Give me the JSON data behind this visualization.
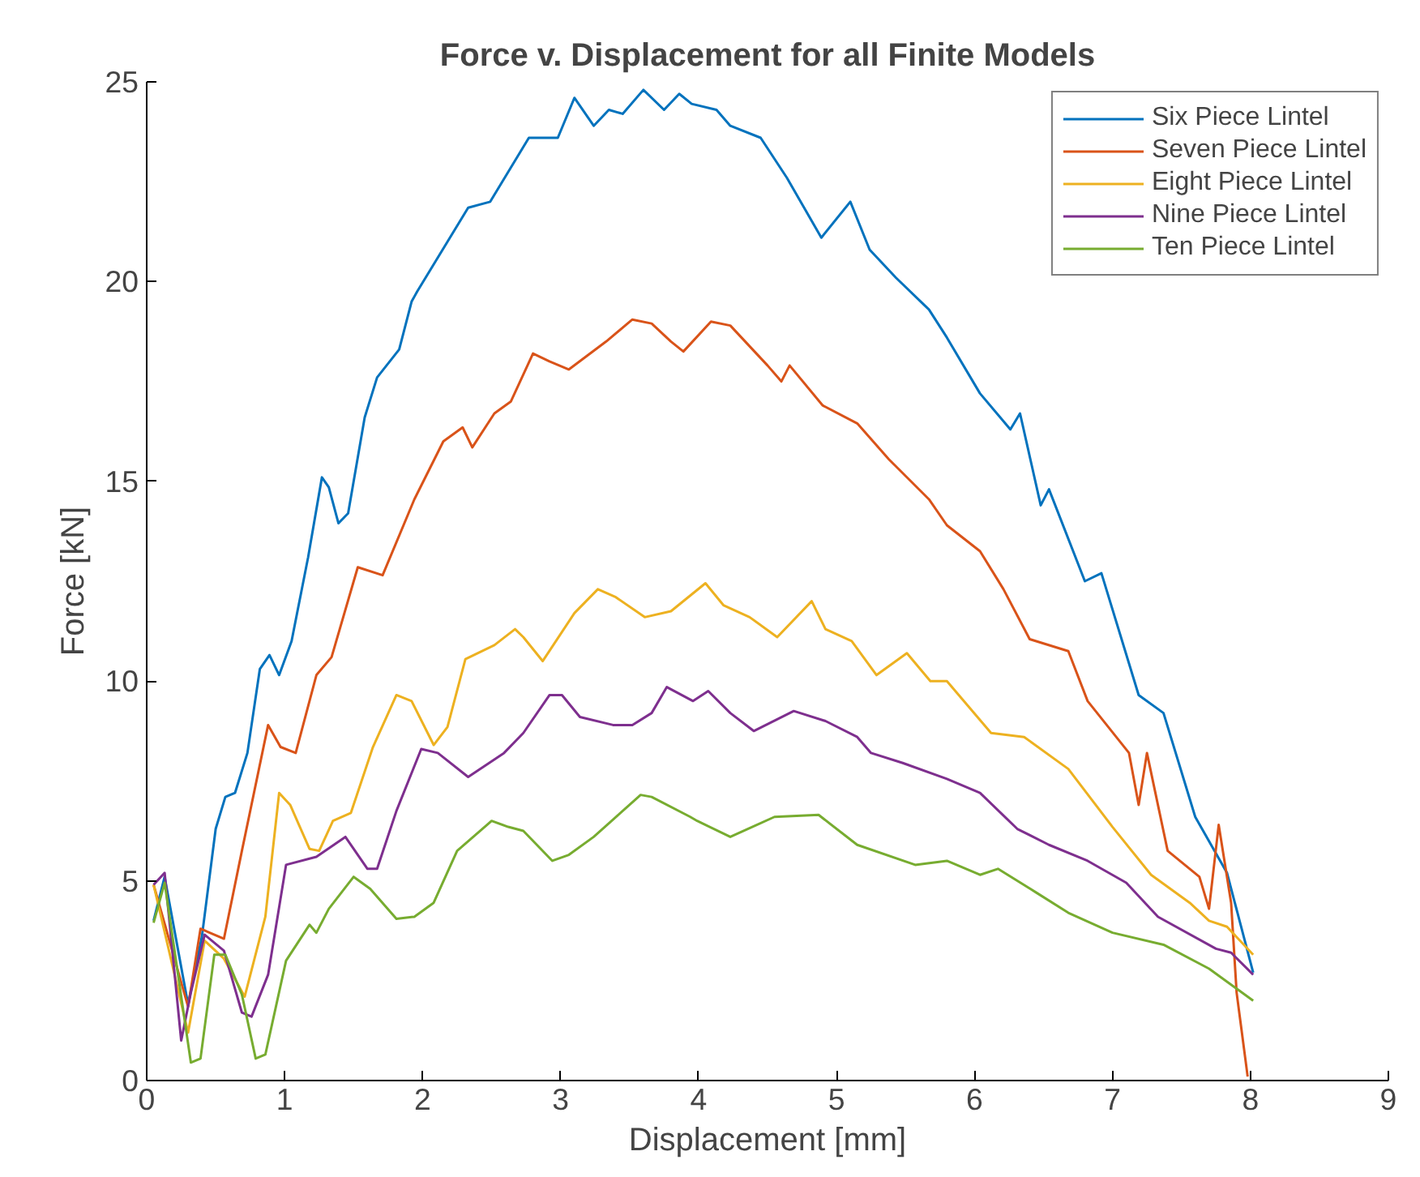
{
  "chart_data": {
    "type": "line",
    "title": "Force v. Displacement for all Finite Models",
    "xlabel": "Displacement [mm]",
    "ylabel": "Force [kN]",
    "xlim": [
      0,
      9
    ],
    "ylim": [
      0,
      25
    ],
    "xticks": [
      0,
      1,
      2,
      3,
      4,
      5,
      6,
      7,
      8,
      9
    ],
    "yticks": [
      0,
      5,
      10,
      15,
      20,
      25
    ],
    "grid": false,
    "legend": "top right",
    "marker": "none",
    "line_style": "solid",
    "series": [
      {
        "name": "Six Piece Lintel",
        "color": "#0072bd",
        "x": [
          0.05,
          0.13,
          0.3,
          0.4,
          0.5,
          0.57,
          0.64,
          0.73,
          0.82,
          0.89,
          0.96,
          1.05,
          1.17,
          1.27,
          1.32,
          1.39,
          1.46,
          1.58,
          1.67,
          1.83,
          1.92,
          1.96,
          2.33,
          2.49,
          2.77,
          2.98,
          3.1,
          3.24,
          3.35,
          3.45,
          3.6,
          3.75,
          3.86,
          3.95,
          4.13,
          4.23,
          4.45,
          4.64,
          4.89,
          5.1,
          5.24,
          5.43,
          5.67,
          5.8,
          6.04,
          6.26,
          6.33,
          6.48,
          6.54,
          6.8,
          6.92,
          7.19,
          7.37,
          7.6,
          7.83,
          8.02
        ],
        "values": [
          4.0,
          5.1,
          1.9,
          3.6,
          6.3,
          7.1,
          7.2,
          8.2,
          10.3,
          10.65,
          10.15,
          11.0,
          13.1,
          15.1,
          14.85,
          13.95,
          14.2,
          16.6,
          17.6,
          18.3,
          19.5,
          19.75,
          21.85,
          22.0,
          23.6,
          23.6,
          24.6,
          23.9,
          24.3,
          24.2,
          24.8,
          24.3,
          24.7,
          24.45,
          24.3,
          23.9,
          23.6,
          22.6,
          21.1,
          22.0,
          20.8,
          20.1,
          19.3,
          18.6,
          17.2,
          16.3,
          16.7,
          14.4,
          14.8,
          12.5,
          12.7,
          9.65,
          9.2,
          6.6,
          5.2,
          2.7
        ]
      },
      {
        "name": "Seven Piece Lintel",
        "color": "#d95319",
        "x": [
          0.05,
          0.3,
          0.39,
          0.56,
          0.69,
          0.88,
          0.97,
          1.08,
          1.23,
          1.34,
          1.53,
          1.71,
          1.94,
          2.15,
          2.29,
          2.36,
          2.52,
          2.64,
          2.8,
          2.92,
          3.06,
          3.33,
          3.52,
          3.66,
          3.8,
          3.89,
          4.09,
          4.23,
          4.5,
          4.6,
          4.66,
          4.9,
          5.15,
          5.38,
          5.67,
          5.8,
          6.04,
          6.21,
          6.4,
          6.68,
          6.82,
          7.12,
          7.19,
          7.25,
          7.4,
          7.63,
          7.7,
          7.77,
          7.86,
          7.9,
          7.98
        ],
        "values": [
          4.9,
          1.85,
          3.8,
          3.55,
          5.75,
          8.9,
          8.35,
          8.2,
          10.15,
          10.6,
          12.85,
          12.65,
          14.55,
          16.0,
          16.35,
          15.85,
          16.7,
          17.0,
          18.2,
          18.0,
          17.8,
          18.5,
          19.05,
          18.95,
          18.5,
          18.25,
          19.0,
          18.9,
          17.9,
          17.5,
          17.9,
          16.9,
          16.45,
          15.55,
          14.55,
          13.9,
          13.25,
          12.3,
          11.05,
          10.75,
          9.5,
          8.2,
          6.9,
          8.2,
          5.75,
          5.1,
          4.3,
          6.4,
          4.45,
          2.2,
          0.1
        ]
      },
      {
        "name": "Eight Piece Lintel",
        "color": "#edb120",
        "x": [
          0.05,
          0.3,
          0.42,
          0.56,
          0.71,
          0.86,
          0.96,
          1.04,
          1.18,
          1.25,
          1.35,
          1.48,
          1.64,
          1.81,
          1.92,
          2.08,
          2.18,
          2.31,
          2.52,
          2.67,
          2.73,
          2.87,
          3.1,
          3.27,
          3.4,
          3.61,
          3.8,
          4.05,
          4.18,
          4.37,
          4.57,
          4.82,
          4.92,
          5.11,
          5.29,
          5.51,
          5.68,
          5.8,
          6.12,
          6.36,
          6.68,
          7.0,
          7.28,
          7.56,
          7.7,
          7.83,
          8.02
        ],
        "values": [
          4.9,
          1.2,
          3.5,
          3.05,
          2.1,
          4.1,
          7.2,
          6.9,
          5.8,
          5.75,
          6.5,
          6.7,
          8.35,
          9.65,
          9.5,
          8.4,
          8.85,
          10.55,
          10.9,
          11.3,
          11.1,
          10.5,
          11.7,
          12.3,
          12.1,
          11.6,
          11.75,
          12.45,
          11.9,
          11.6,
          11.1,
          12.0,
          11.3,
          11.0,
          10.15,
          10.7,
          10.0,
          10.0,
          8.7,
          8.6,
          7.8,
          6.35,
          5.15,
          4.45,
          4.0,
          3.85,
          3.15
        ]
      },
      {
        "name": "Nine Piece Lintel",
        "color": "#7e2f8e",
        "x": [
          0.05,
          0.13,
          0.25,
          0.32,
          0.42,
          0.56,
          0.69,
          0.76,
          0.88,
          1.01,
          1.23,
          1.44,
          1.6,
          1.67,
          1.81,
          1.99,
          2.11,
          2.33,
          2.59,
          2.73,
          2.92,
          3.01,
          3.14,
          3.38,
          3.52,
          3.66,
          3.77,
          3.96,
          4.07,
          4.23,
          4.4,
          4.69,
          4.92,
          5.15,
          5.25,
          5.48,
          5.8,
          6.04,
          6.31,
          6.54,
          6.82,
          7.1,
          7.33,
          7.75,
          7.86,
          8.02
        ],
        "values": [
          4.9,
          5.2,
          1.0,
          2.2,
          3.65,
          3.25,
          1.7,
          1.6,
          2.65,
          5.4,
          5.6,
          6.1,
          5.3,
          5.3,
          6.75,
          8.3,
          8.2,
          7.6,
          8.2,
          8.7,
          9.65,
          9.65,
          9.1,
          8.9,
          8.9,
          9.2,
          9.85,
          9.5,
          9.75,
          9.2,
          8.75,
          9.25,
          9.0,
          8.6,
          8.2,
          7.95,
          7.55,
          7.2,
          6.3,
          5.9,
          5.5,
          4.95,
          4.1,
          3.3,
          3.2,
          2.65
        ]
      },
      {
        "name": "Ten Piece Lintel",
        "color": "#77ac30",
        "x": [
          0.05,
          0.13,
          0.32,
          0.39,
          0.49,
          0.57,
          0.69,
          0.79,
          0.86,
          1.01,
          1.18,
          1.23,
          1.32,
          1.5,
          1.62,
          1.81,
          1.94,
          2.08,
          2.25,
          2.5,
          2.62,
          2.73,
          2.94,
          3.06,
          3.24,
          3.58,
          3.66,
          3.94,
          3.99,
          4.23,
          4.55,
          4.87,
          5.15,
          5.57,
          5.8,
          6.04,
          6.17,
          6.45,
          6.68,
          7.0,
          7.37,
          7.7,
          8.02
        ],
        "values": [
          3.95,
          4.95,
          0.45,
          0.55,
          3.15,
          3.15,
          2.15,
          0.55,
          0.65,
          3.0,
          3.9,
          3.7,
          4.3,
          5.1,
          4.8,
          4.05,
          4.1,
          4.45,
          5.75,
          6.5,
          6.35,
          6.25,
          5.5,
          5.65,
          6.1,
          7.15,
          7.1,
          6.6,
          6.5,
          6.1,
          6.6,
          6.65,
          5.9,
          5.4,
          5.5,
          5.15,
          5.3,
          4.7,
          4.2,
          3.7,
          3.4,
          2.8,
          2.0
        ]
      }
    ]
  }
}
